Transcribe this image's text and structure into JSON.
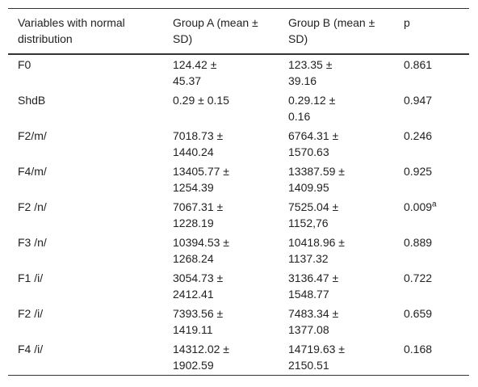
{
  "table": {
    "headers": [
      "Variables with normal distribution",
      "Group A (mean ± SD)",
      "Group B (mean ± SD)",
      "p"
    ],
    "rows": [
      [
        "F0",
        "124.42 ± 45.37",
        "123.35 ± 39.16",
        {
          "text": "0.861"
        }
      ],
      [
        "ShdB",
        "0.29 ± 0.15",
        "0.29.12 ± 0.16",
        {
          "text": "0.947"
        }
      ],
      [
        "F2/m/",
        "7018.73 ± 1440.24",
        "6764.31 ± 1570.63",
        {
          "text": "0.246"
        }
      ],
      [
        "F4/m/",
        "13405.77 ± 1254.39",
        "13387.59 ± 1409.95",
        {
          "text": "0.925"
        }
      ],
      [
        "F2 /n/",
        "7067.31 ± 1228.19",
        "7525.04 ± 1152,76",
        {
          "text": "0.009",
          "sup": "a"
        }
      ],
      [
        "F3 /n/",
        "10394.53 ± 1268.24",
        "10418.96 ± 1137.32",
        {
          "text": "0.889"
        }
      ],
      [
        "F1 /i/",
        "3054.73 ± 2412.41",
        "3136.47 ± 1548.77",
        {
          "text": "0.722"
        }
      ],
      [
        "F2 /i/",
        "7393.56 ± 1419.11",
        "7483.34 ± 1377.08",
        {
          "text": "0.659"
        }
      ],
      [
        "F4 /i/",
        "14312.02 ± 1902.59",
        "14719.63 ± 2150.51",
        {
          "text": "0.168"
        }
      ]
    ]
  }
}
